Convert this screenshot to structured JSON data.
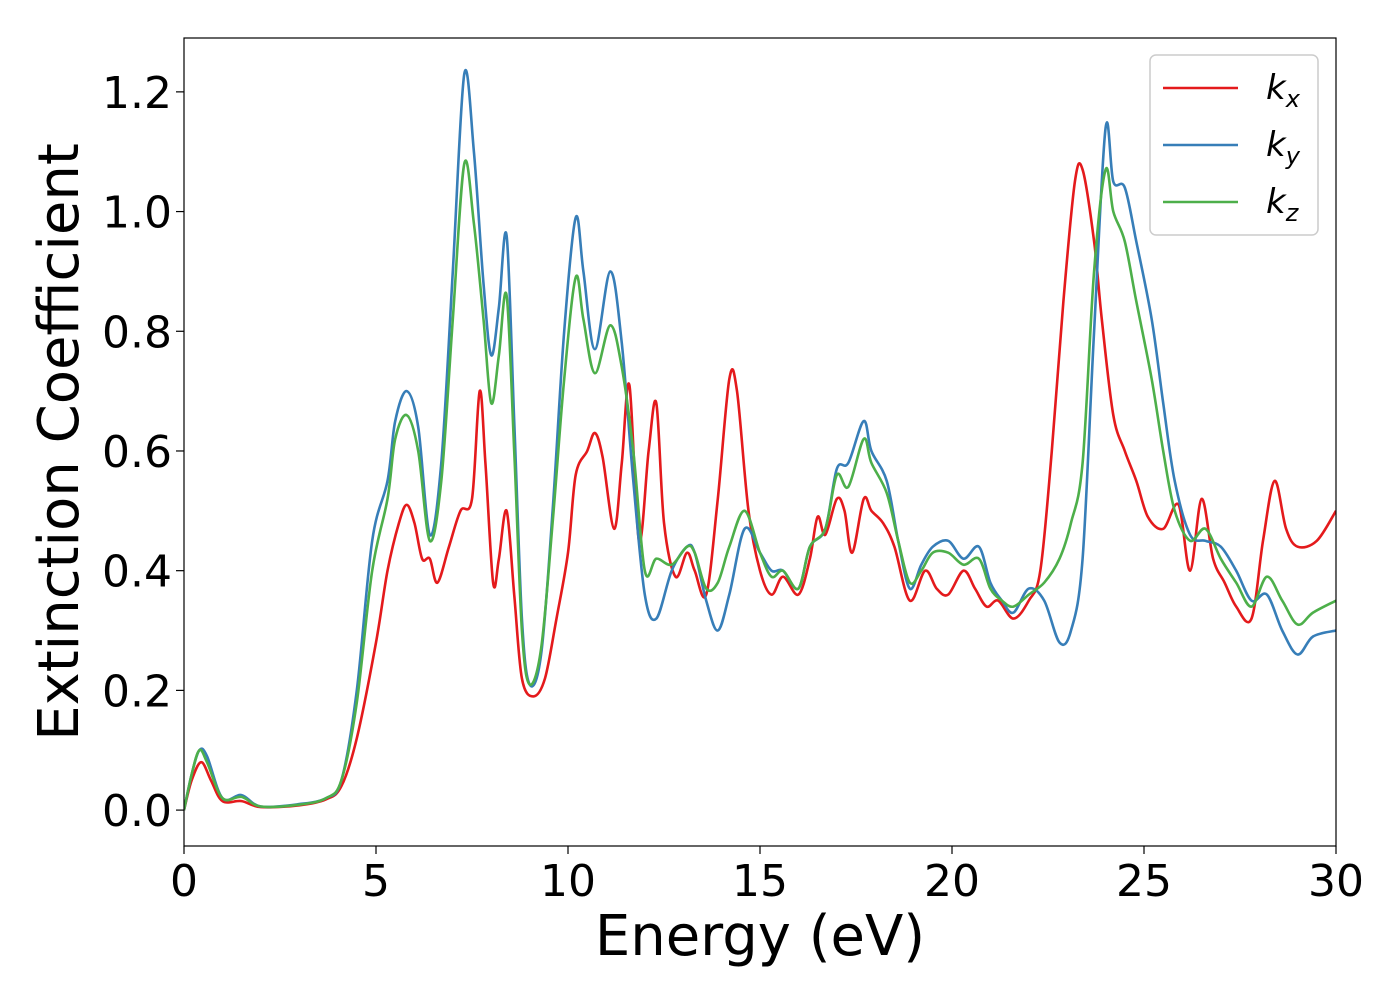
{
  "chart_data": {
    "type": "line",
    "title": "",
    "xlabel": "Energy (eV)",
    "ylabel": "Extinction Coefficient",
    "xlim": [
      0,
      30
    ],
    "ylim": [
      -0.06,
      1.29
    ],
    "xticks": [
      0,
      5,
      10,
      15,
      20,
      25,
      30
    ],
    "xtick_labels": [
      "0",
      "5",
      "10",
      "15",
      "20",
      "25",
      "30"
    ],
    "yticks": [
      0.0,
      0.2,
      0.4,
      0.6,
      0.8,
      1.0,
      1.2
    ],
    "ytick_labels": [
      "0.0",
      "0.2",
      "0.4",
      "0.6",
      "0.8",
      "1.0",
      "1.2"
    ],
    "grid": false,
    "legend_position": "top-right",
    "series": [
      {
        "name": "k_x",
        "legend_main": "k",
        "legend_sub": "x",
        "color": "#e41a1c",
        "points": [
          [
            0,
            0
          ],
          [
            0.2,
            0.05
          ],
          [
            0.45,
            0.08
          ],
          [
            0.7,
            0.05
          ],
          [
            1.0,
            0.015
          ],
          [
            1.5,
            0.015
          ],
          [
            2.0,
            0.005
          ],
          [
            3.0,
            0.008
          ],
          [
            3.7,
            0.018
          ],
          [
            4.1,
            0.04
          ],
          [
            4.5,
            0.12
          ],
          [
            5.0,
            0.28
          ],
          [
            5.3,
            0.4
          ],
          [
            5.6,
            0.48
          ],
          [
            5.8,
            0.51
          ],
          [
            6.0,
            0.48
          ],
          [
            6.2,
            0.42
          ],
          [
            6.4,
            0.42
          ],
          [
            6.6,
            0.38
          ],
          [
            6.9,
            0.44
          ],
          [
            7.2,
            0.5
          ],
          [
            7.5,
            0.52
          ],
          [
            7.7,
            0.7
          ],
          [
            7.85,
            0.58
          ],
          [
            8.05,
            0.38
          ],
          [
            8.2,
            0.42
          ],
          [
            8.4,
            0.5
          ],
          [
            8.6,
            0.36
          ],
          [
            8.8,
            0.22
          ],
          [
            9.1,
            0.19
          ],
          [
            9.4,
            0.22
          ],
          [
            9.7,
            0.32
          ],
          [
            10.0,
            0.43
          ],
          [
            10.2,
            0.56
          ],
          [
            10.5,
            0.6
          ],
          [
            10.7,
            0.63
          ],
          [
            10.9,
            0.59
          ],
          [
            11.2,
            0.47
          ],
          [
            11.4,
            0.58
          ],
          [
            11.6,
            0.71
          ],
          [
            11.85,
            0.45
          ],
          [
            12.1,
            0.6
          ],
          [
            12.3,
            0.68
          ],
          [
            12.5,
            0.48
          ],
          [
            12.8,
            0.39
          ],
          [
            13.1,
            0.43
          ],
          [
            13.3,
            0.4
          ],
          [
            13.6,
            0.36
          ],
          [
            13.9,
            0.52
          ],
          [
            14.2,
            0.72
          ],
          [
            14.4,
            0.7
          ],
          [
            14.7,
            0.5
          ],
          [
            15.0,
            0.4
          ],
          [
            15.3,
            0.36
          ],
          [
            15.6,
            0.39
          ],
          [
            16.0,
            0.36
          ],
          [
            16.3,
            0.42
          ],
          [
            16.5,
            0.49
          ],
          [
            16.7,
            0.46
          ],
          [
            17.0,
            0.52
          ],
          [
            17.2,
            0.5
          ],
          [
            17.4,
            0.43
          ],
          [
            17.7,
            0.52
          ],
          [
            17.9,
            0.5
          ],
          [
            18.2,
            0.48
          ],
          [
            18.5,
            0.44
          ],
          [
            18.9,
            0.35
          ],
          [
            19.3,
            0.4
          ],
          [
            19.6,
            0.37
          ],
          [
            19.9,
            0.36
          ],
          [
            20.3,
            0.4
          ],
          [
            20.6,
            0.37
          ],
          [
            20.9,
            0.34
          ],
          [
            21.2,
            0.35
          ],
          [
            21.6,
            0.32
          ],
          [
            22.0,
            0.35
          ],
          [
            22.3,
            0.4
          ],
          [
            22.6,
            0.6
          ],
          [
            22.9,
            0.85
          ],
          [
            23.2,
            1.05
          ],
          [
            23.4,
            1.07
          ],
          [
            23.7,
            0.95
          ],
          [
            23.9,
            0.82
          ],
          [
            24.2,
            0.66
          ],
          [
            24.5,
            0.6
          ],
          [
            24.8,
            0.55
          ],
          [
            25.1,
            0.49
          ],
          [
            25.5,
            0.47
          ],
          [
            25.9,
            0.51
          ],
          [
            26.2,
            0.4
          ],
          [
            26.5,
            0.52
          ],
          [
            26.8,
            0.42
          ],
          [
            27.1,
            0.38
          ],
          [
            27.4,
            0.34
          ],
          [
            27.8,
            0.32
          ],
          [
            28.1,
            0.45
          ],
          [
            28.4,
            0.55
          ],
          [
            28.7,
            0.47
          ],
          [
            29.0,
            0.44
          ],
          [
            29.5,
            0.45
          ],
          [
            30.0,
            0.5
          ]
        ]
      },
      {
        "name": "k_y",
        "legend_main": "k",
        "legend_sub": "y",
        "color": "#377eb8",
        "points": [
          [
            0,
            0
          ],
          [
            0.2,
            0.06
          ],
          [
            0.4,
            0.1
          ],
          [
            0.6,
            0.09
          ],
          [
            1.0,
            0.02
          ],
          [
            1.5,
            0.025
          ],
          [
            2.0,
            0.006
          ],
          [
            3.0,
            0.01
          ],
          [
            3.7,
            0.02
          ],
          [
            4.1,
            0.05
          ],
          [
            4.5,
            0.2
          ],
          [
            4.9,
            0.45
          ],
          [
            5.3,
            0.55
          ],
          [
            5.5,
            0.65
          ],
          [
            5.8,
            0.7
          ],
          [
            6.1,
            0.64
          ],
          [
            6.4,
            0.46
          ],
          [
            6.7,
            0.58
          ],
          [
            7.0,
            0.9
          ],
          [
            7.3,
            1.23
          ],
          [
            7.55,
            1.1
          ],
          [
            7.8,
            0.88
          ],
          [
            8.0,
            0.76
          ],
          [
            8.2,
            0.84
          ],
          [
            8.4,
            0.96
          ],
          [
            8.6,
            0.65
          ],
          [
            8.8,
            0.32
          ],
          [
            9.0,
            0.21
          ],
          [
            9.3,
            0.26
          ],
          [
            9.6,
            0.5
          ],
          [
            9.9,
            0.8
          ],
          [
            10.2,
            0.99
          ],
          [
            10.4,
            0.9
          ],
          [
            10.7,
            0.77
          ],
          [
            11.1,
            0.9
          ],
          [
            11.4,
            0.78
          ],
          [
            11.7,
            0.55
          ],
          [
            12.0,
            0.36
          ],
          [
            12.3,
            0.32
          ],
          [
            12.7,
            0.4
          ],
          [
            13.1,
            0.44
          ],
          [
            13.3,
            0.43
          ],
          [
            13.6,
            0.35
          ],
          [
            13.9,
            0.3
          ],
          [
            14.2,
            0.36
          ],
          [
            14.6,
            0.47
          ],
          [
            15.0,
            0.43
          ],
          [
            15.3,
            0.4
          ],
          [
            15.6,
            0.4
          ],
          [
            16.0,
            0.37
          ],
          [
            16.3,
            0.44
          ],
          [
            16.7,
            0.47
          ],
          [
            17.0,
            0.57
          ],
          [
            17.3,
            0.58
          ],
          [
            17.7,
            0.65
          ],
          [
            17.9,
            0.6
          ],
          [
            18.3,
            0.55
          ],
          [
            18.6,
            0.45
          ],
          [
            18.9,
            0.37
          ],
          [
            19.2,
            0.41
          ],
          [
            19.5,
            0.44
          ],
          [
            19.9,
            0.45
          ],
          [
            20.3,
            0.42
          ],
          [
            20.7,
            0.44
          ],
          [
            21.0,
            0.38
          ],
          [
            21.3,
            0.35
          ],
          [
            21.6,
            0.33
          ],
          [
            22.0,
            0.37
          ],
          [
            22.4,
            0.35
          ],
          [
            22.8,
            0.28
          ],
          [
            23.1,
            0.3
          ],
          [
            23.4,
            0.42
          ],
          [
            23.7,
            0.8
          ],
          [
            24.0,
            1.14
          ],
          [
            24.2,
            1.05
          ],
          [
            24.5,
            1.04
          ],
          [
            24.8,
            0.95
          ],
          [
            25.2,
            0.82
          ],
          [
            25.5,
            0.68
          ],
          [
            25.8,
            0.55
          ],
          [
            26.2,
            0.46
          ],
          [
            26.6,
            0.45
          ],
          [
            27.0,
            0.44
          ],
          [
            27.4,
            0.4
          ],
          [
            27.8,
            0.35
          ],
          [
            28.2,
            0.36
          ],
          [
            28.6,
            0.3
          ],
          [
            29.0,
            0.26
          ],
          [
            29.4,
            0.29
          ],
          [
            30.0,
            0.3
          ]
        ]
      },
      {
        "name": "k_z",
        "legend_main": "k",
        "legend_sub": "z",
        "color": "#4daf4a",
        "points": [
          [
            0,
            0
          ],
          [
            0.2,
            0.06
          ],
          [
            0.4,
            0.1
          ],
          [
            0.6,
            0.08
          ],
          [
            1.0,
            0.02
          ],
          [
            1.5,
            0.022
          ],
          [
            2.0,
            0.006
          ],
          [
            3.0,
            0.009
          ],
          [
            3.7,
            0.02
          ],
          [
            4.1,
            0.05
          ],
          [
            4.5,
            0.18
          ],
          [
            4.9,
            0.4
          ],
          [
            5.3,
            0.52
          ],
          [
            5.5,
            0.62
          ],
          [
            5.8,
            0.66
          ],
          [
            6.1,
            0.6
          ],
          [
            6.4,
            0.45
          ],
          [
            6.7,
            0.55
          ],
          [
            7.0,
            0.82
          ],
          [
            7.3,
            1.08
          ],
          [
            7.55,
            0.98
          ],
          [
            7.8,
            0.82
          ],
          [
            8.0,
            0.68
          ],
          [
            8.2,
            0.76
          ],
          [
            8.4,
            0.86
          ],
          [
            8.6,
            0.6
          ],
          [
            8.8,
            0.3
          ],
          [
            9.0,
            0.21
          ],
          [
            9.3,
            0.27
          ],
          [
            9.6,
            0.48
          ],
          [
            9.9,
            0.72
          ],
          [
            10.2,
            0.89
          ],
          [
            10.4,
            0.82
          ],
          [
            10.7,
            0.73
          ],
          [
            11.1,
            0.81
          ],
          [
            11.4,
            0.74
          ],
          [
            11.7,
            0.6
          ],
          [
            12.0,
            0.4
          ],
          [
            12.3,
            0.42
          ],
          [
            12.7,
            0.41
          ],
          [
            13.1,
            0.44
          ],
          [
            13.3,
            0.43
          ],
          [
            13.6,
            0.37
          ],
          [
            13.9,
            0.38
          ],
          [
            14.2,
            0.44
          ],
          [
            14.6,
            0.5
          ],
          [
            15.0,
            0.43
          ],
          [
            15.3,
            0.39
          ],
          [
            15.6,
            0.4
          ],
          [
            16.0,
            0.37
          ],
          [
            16.3,
            0.44
          ],
          [
            16.7,
            0.47
          ],
          [
            17.0,
            0.56
          ],
          [
            17.3,
            0.54
          ],
          [
            17.7,
            0.62
          ],
          [
            17.9,
            0.58
          ],
          [
            18.3,
            0.53
          ],
          [
            18.6,
            0.45
          ],
          [
            18.9,
            0.38
          ],
          [
            19.2,
            0.4
          ],
          [
            19.5,
            0.43
          ],
          [
            19.9,
            0.43
          ],
          [
            20.3,
            0.41
          ],
          [
            20.7,
            0.42
          ],
          [
            21.0,
            0.37
          ],
          [
            21.3,
            0.35
          ],
          [
            21.6,
            0.34
          ],
          [
            22.0,
            0.36
          ],
          [
            22.4,
            0.38
          ],
          [
            22.8,
            0.42
          ],
          [
            23.1,
            0.48
          ],
          [
            23.4,
            0.58
          ],
          [
            23.7,
            0.9
          ],
          [
            24.0,
            1.07
          ],
          [
            24.2,
            1.0
          ],
          [
            24.5,
            0.95
          ],
          [
            24.8,
            0.85
          ],
          [
            25.2,
            0.72
          ],
          [
            25.5,
            0.6
          ],
          [
            25.8,
            0.5
          ],
          [
            26.2,
            0.45
          ],
          [
            26.6,
            0.47
          ],
          [
            27.0,
            0.42
          ],
          [
            27.4,
            0.38
          ],
          [
            27.8,
            0.34
          ],
          [
            28.2,
            0.39
          ],
          [
            28.6,
            0.35
          ],
          [
            29.0,
            0.31
          ],
          [
            29.4,
            0.33
          ],
          [
            30.0,
            0.35
          ]
        ]
      }
    ]
  }
}
